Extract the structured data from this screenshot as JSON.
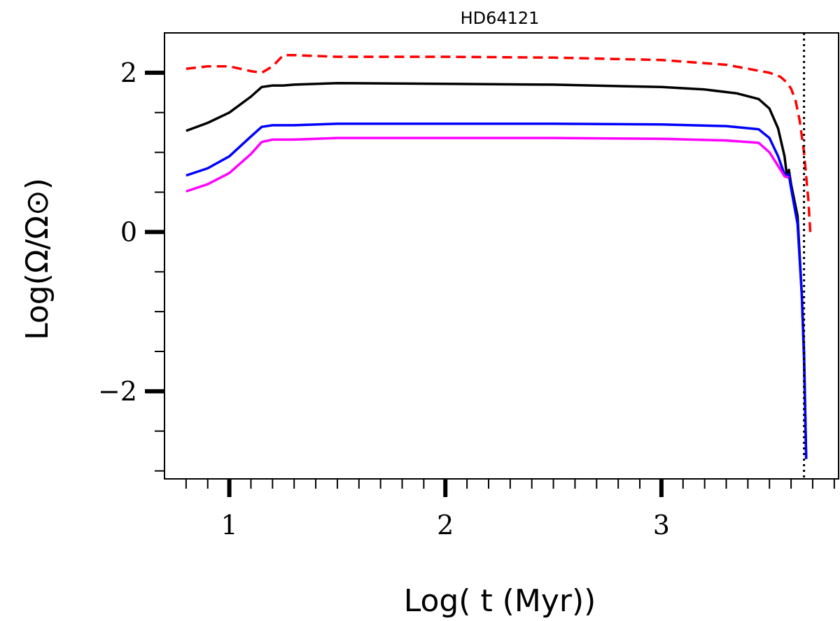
{
  "chart_data": {
    "type": "line",
    "title": "HD64121",
    "xlabel": "Log( t (Myr))",
    "ylabel": "Log(Ω/Ω⊙)",
    "xlim": [
      0.7,
      3.82
    ],
    "ylim": [
      -3.1,
      2.5
    ],
    "x_ticks": [
      {
        "value": 1,
        "label": "1"
      },
      {
        "value": 2,
        "label": "2"
      },
      {
        "value": 3,
        "label": "3"
      }
    ],
    "y_ticks": [
      {
        "value": -2,
        "label": "−2"
      },
      {
        "value": 0,
        "label": "0"
      },
      {
        "value": 2,
        "label": "2"
      }
    ],
    "x_minor_ticks": [
      0.8,
      0.9,
      1.1,
      1.2,
      1.3,
      1.4,
      1.5,
      1.6,
      1.7,
      1.8,
      1.9,
      2.1,
      2.2,
      2.3,
      2.4,
      2.5,
      2.6,
      2.7,
      2.8,
      2.9,
      3.1,
      3.2,
      3.3,
      3.4,
      3.5,
      3.6,
      3.7,
      3.8
    ],
    "y_minor_ticks": [
      -3.0,
      -2.5,
      -1.5,
      -1.0,
      -0.5,
      0.5,
      1.0,
      1.5
    ],
    "vline": {
      "x": 3.66,
      "color": "#000000",
      "style": "dotted"
    },
    "grid": false,
    "series": [
      {
        "color": "#ff0000",
        "style": "dashed",
        "x": [
          0.8,
          0.9,
          1.0,
          1.1,
          1.15,
          1.2,
          1.25,
          1.3,
          1.5,
          2.0,
          2.5,
          3.0,
          3.3,
          3.5,
          3.55,
          3.58,
          3.6,
          3.62,
          3.64,
          3.66,
          3.68,
          3.69
        ],
        "y": [
          2.05,
          2.08,
          2.08,
          2.02,
          2.0,
          2.08,
          2.22,
          2.22,
          2.2,
          2.2,
          2.19,
          2.16,
          2.1,
          2.0,
          1.95,
          1.88,
          1.8,
          1.66,
          1.4,
          1.0,
          0.4,
          -0.05
        ]
      },
      {
        "color": "#000000",
        "style": "solid",
        "x": [
          0.8,
          0.9,
          1.0,
          1.1,
          1.15,
          1.2,
          1.22,
          1.25,
          1.3,
          1.5,
          2.0,
          2.5,
          3.0,
          3.2,
          3.35,
          3.45,
          3.5,
          3.54,
          3.57,
          3.58,
          3.59,
          3.6,
          3.63,
          3.65,
          3.66,
          3.67
        ],
        "y": [
          1.27,
          1.37,
          1.5,
          1.7,
          1.82,
          1.84,
          1.84,
          1.84,
          1.85,
          1.87,
          1.86,
          1.85,
          1.82,
          1.79,
          1.74,
          1.67,
          1.55,
          1.3,
          0.95,
          0.72,
          0.78,
          0.6,
          0.2,
          -0.8,
          -1.5,
          -2.85
        ]
      },
      {
        "color": "#0000ff",
        "style": "solid",
        "x": [
          0.8,
          0.9,
          1.0,
          1.1,
          1.15,
          1.2,
          1.25,
          1.3,
          1.5,
          2.0,
          2.5,
          3.0,
          3.3,
          3.45,
          3.5,
          3.54,
          3.57,
          3.59,
          3.6,
          3.63,
          3.65,
          3.66,
          3.67
        ],
        "y": [
          0.71,
          0.8,
          0.95,
          1.2,
          1.32,
          1.34,
          1.34,
          1.34,
          1.36,
          1.36,
          1.36,
          1.35,
          1.33,
          1.29,
          1.18,
          0.95,
          0.72,
          0.72,
          0.55,
          0.1,
          -0.8,
          -1.6,
          -2.85
        ]
      },
      {
        "color": "#ff00ff",
        "style": "solid",
        "x": [
          0.8,
          0.9,
          1.0,
          1.1,
          1.15,
          1.2,
          1.25,
          1.3,
          1.5,
          2.0,
          2.5,
          3.0,
          3.3,
          3.45,
          3.5,
          3.54,
          3.57,
          3.59
        ],
        "y": [
          0.51,
          0.6,
          0.74,
          0.98,
          1.13,
          1.16,
          1.16,
          1.16,
          1.18,
          1.18,
          1.18,
          1.17,
          1.15,
          1.12,
          1.0,
          0.83,
          0.7,
          0.68
        ]
      }
    ]
  }
}
